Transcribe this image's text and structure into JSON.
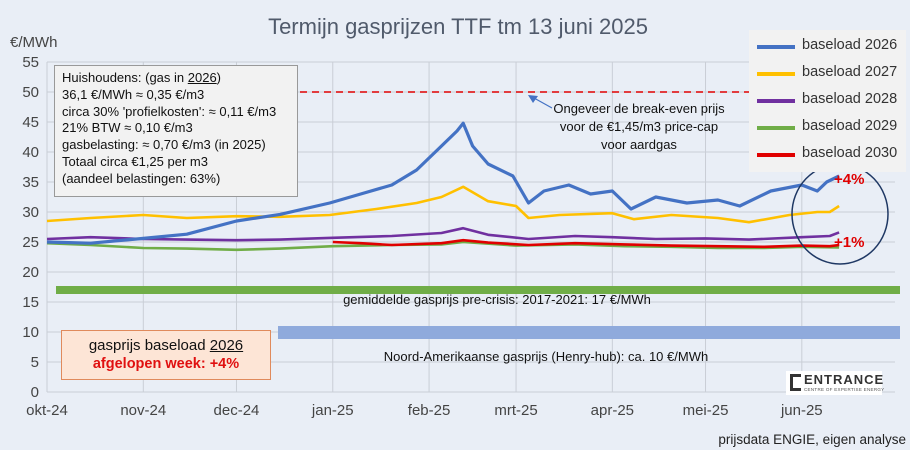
{
  "chart_data": {
    "type": "line",
    "title": "Termijn gasprijzen TTF tm 13 juni 2025",
    "ylabel": "€/MWh",
    "ylim": [
      0,
      55
    ],
    "yticks": [
      0,
      5,
      10,
      15,
      20,
      25,
      30,
      35,
      40,
      45,
      50,
      55
    ],
    "xlim": [
      "2024-10-01",
      "2025-07-01"
    ],
    "xticks": [
      "okt-24",
      "nov-24",
      "dec-24",
      "jan-25",
      "feb-25",
      "mrt-25",
      "apr-25",
      "mei-25",
      "jun-25"
    ],
    "xtick_dates": [
      "2024-10-01",
      "2024-11-01",
      "2024-12-01",
      "2025-01-01",
      "2025-02-01",
      "2025-03-01",
      "2025-04-01",
      "2025-05-01",
      "2025-06-01"
    ],
    "grid": true,
    "legend_position": "top-right",
    "series": [
      {
        "name": "baseload 2026",
        "color": "#4472c4",
        "points": [
          [
            "2024-10-01",
            25.0
          ],
          [
            "2024-10-15",
            24.8
          ],
          [
            "2024-11-01",
            25.6
          ],
          [
            "2024-11-15",
            26.3
          ],
          [
            "2024-12-01",
            28.5
          ],
          [
            "2024-12-15",
            29.6
          ],
          [
            "2024-12-31",
            31.5
          ],
          [
            "2025-01-10",
            33.0
          ],
          [
            "2025-01-20",
            34.5
          ],
          [
            "2025-01-28",
            37.0
          ],
          [
            "2025-02-04",
            40.5
          ],
          [
            "2025-02-10",
            43.5
          ],
          [
            "2025-02-12",
            44.8
          ],
          [
            "2025-02-15",
            41.0
          ],
          [
            "2025-02-20",
            38.0
          ],
          [
            "2025-02-28",
            36.0
          ],
          [
            "2025-03-05",
            31.5
          ],
          [
            "2025-03-10",
            33.5
          ],
          [
            "2025-03-18",
            34.5
          ],
          [
            "2025-03-25",
            33.0
          ],
          [
            "2025-04-01",
            33.5
          ],
          [
            "2025-04-07",
            30.5
          ],
          [
            "2025-04-15",
            32.5
          ],
          [
            "2025-04-25",
            31.5
          ],
          [
            "2025-05-05",
            32.0
          ],
          [
            "2025-05-12",
            31.0
          ],
          [
            "2025-05-22",
            33.5
          ],
          [
            "2025-06-01",
            34.5
          ],
          [
            "2025-06-06",
            33.5
          ],
          [
            "2025-06-09",
            35.0
          ],
          [
            "2025-06-13",
            36.0
          ]
        ]
      },
      {
        "name": "baseload 2027",
        "color": "#ffc000",
        "points": [
          [
            "2024-10-01",
            28.5
          ],
          [
            "2024-10-15",
            29.0
          ],
          [
            "2024-11-01",
            29.5
          ],
          [
            "2024-11-15",
            29.0
          ],
          [
            "2024-12-01",
            29.3
          ],
          [
            "2024-12-15",
            29.2
          ],
          [
            "2024-12-31",
            29.5
          ],
          [
            "2025-01-15",
            30.5
          ],
          [
            "2025-01-28",
            31.5
          ],
          [
            "2025-02-05",
            32.5
          ],
          [
            "2025-02-12",
            34.2
          ],
          [
            "2025-02-20",
            31.8
          ],
          [
            "2025-03-01",
            31.0
          ],
          [
            "2025-03-05",
            29.0
          ],
          [
            "2025-03-15",
            29.5
          ],
          [
            "2025-04-01",
            29.8
          ],
          [
            "2025-04-08",
            28.8
          ],
          [
            "2025-04-20",
            29.5
          ],
          [
            "2025-05-05",
            29.0
          ],
          [
            "2025-05-15",
            28.3
          ],
          [
            "2025-05-28",
            29.5
          ],
          [
            "2025-06-06",
            30.0
          ],
          [
            "2025-06-10",
            30.0
          ],
          [
            "2025-06-13",
            31.0
          ]
        ]
      },
      {
        "name": "baseload 2028",
        "color": "#7030a0",
        "points": [
          [
            "2024-10-01",
            25.5
          ],
          [
            "2024-10-15",
            25.8
          ],
          [
            "2024-11-01",
            25.5
          ],
          [
            "2024-11-15",
            25.4
          ],
          [
            "2024-12-01",
            25.3
          ],
          [
            "2024-12-15",
            25.4
          ],
          [
            "2025-01-01",
            25.7
          ],
          [
            "2025-01-20",
            26.0
          ],
          [
            "2025-02-05",
            26.5
          ],
          [
            "2025-02-12",
            27.3
          ],
          [
            "2025-02-20",
            26.2
          ],
          [
            "2025-03-05",
            25.5
          ],
          [
            "2025-03-20",
            26.0
          ],
          [
            "2025-04-01",
            25.8
          ],
          [
            "2025-04-15",
            25.5
          ],
          [
            "2025-05-01",
            25.6
          ],
          [
            "2025-05-15",
            25.4
          ],
          [
            "2025-06-01",
            25.8
          ],
          [
            "2025-06-10",
            26.0
          ],
          [
            "2025-06-13",
            26.6
          ]
        ]
      },
      {
        "name": "baseload 2029",
        "color": "#70ad47",
        "points": [
          [
            "2024-10-01",
            24.8
          ],
          [
            "2024-10-15",
            24.5
          ],
          [
            "2024-11-01",
            24.0
          ],
          [
            "2024-11-15",
            23.9
          ],
          [
            "2024-12-01",
            23.7
          ],
          [
            "2024-12-15",
            23.9
          ],
          [
            "2025-01-01",
            24.3
          ],
          [
            "2025-01-20",
            24.5
          ],
          [
            "2025-02-05",
            24.6
          ],
          [
            "2025-02-12",
            25.0
          ],
          [
            "2025-03-01",
            24.4
          ],
          [
            "2025-03-20",
            24.6
          ],
          [
            "2025-04-05",
            24.3
          ],
          [
            "2025-04-20",
            24.2
          ],
          [
            "2025-05-05",
            24.0
          ],
          [
            "2025-05-20",
            24.0
          ],
          [
            "2025-06-01",
            24.2
          ],
          [
            "2025-06-13",
            24.1
          ]
        ]
      },
      {
        "name": "baseload 2030",
        "color": "#e00000",
        "points": [
          [
            "2025-01-01",
            25.0
          ],
          [
            "2025-01-10",
            24.8
          ],
          [
            "2025-01-20",
            24.5
          ],
          [
            "2025-02-05",
            24.8
          ],
          [
            "2025-02-12",
            25.3
          ],
          [
            "2025-02-20",
            24.9
          ],
          [
            "2025-03-05",
            24.5
          ],
          [
            "2025-03-20",
            24.8
          ],
          [
            "2025-04-05",
            24.6
          ],
          [
            "2025-04-20",
            24.4
          ],
          [
            "2025-05-05",
            24.3
          ],
          [
            "2025-05-20",
            24.2
          ],
          [
            "2025-06-01",
            24.4
          ],
          [
            "2025-06-10",
            24.3
          ],
          [
            "2025-06-13",
            24.5
          ]
        ]
      }
    ],
    "reference_lines": [
      {
        "value": 50,
        "color": "#e00000",
        "style": "dashed",
        "label": "Ongeveer de break-even prijs voor de €1,45/m3 price-cap voor aardgas",
        "label_lines": [
          "Ongeveer de break-even prijs",
          "voor de €1,45/m3 price-cap",
          "voor aardgas"
        ]
      },
      {
        "value": 17,
        "color": "#70ad47",
        "style": "band",
        "label": "gemiddelde gasprijs pre-crisis: 2017-2021: 17 €/MWh"
      },
      {
        "value": 10,
        "color": "#8faadc",
        "style": "band",
        "label": "Noord-Amerikaanse gasprijs (Henry-hub): ca. 10 €/MWh"
      }
    ],
    "annotations": [
      {
        "text": "+4%",
        "series": "baseload 2026",
        "color": "#e00000"
      },
      {
        "text": "+1%",
        "series": "baseload 2030",
        "color": "#e00000"
      }
    ],
    "source": "prijsdata ENGIE, eigen analyse"
  },
  "household_box": {
    "line1_prefix": "Huishoudens: (gas in ",
    "line1_year": "2026",
    "line1_suffix": ")",
    "lines": [
      "36,1 €/MWh ≈ 0,35 €/m3",
      "circa 30% 'profielkosten': ≈ 0,11 €/m3",
      "21% BTW ≈ 0,10 €/m3",
      "gasbelasting: ≈ 0,70 €/m3  (in 2025)",
      "Totaal circa €1,25 per m3",
      "(aandeel belastingen: 63%)"
    ]
  },
  "week_box": {
    "line1_prefix": "gasprijs baseload ",
    "line1_year": "2026",
    "line2": "afgelopen week: +4%"
  },
  "logo": {
    "name": "ENTRANCE",
    "tagline": "CENTRE OF EXPERTISE ENERGY"
  }
}
